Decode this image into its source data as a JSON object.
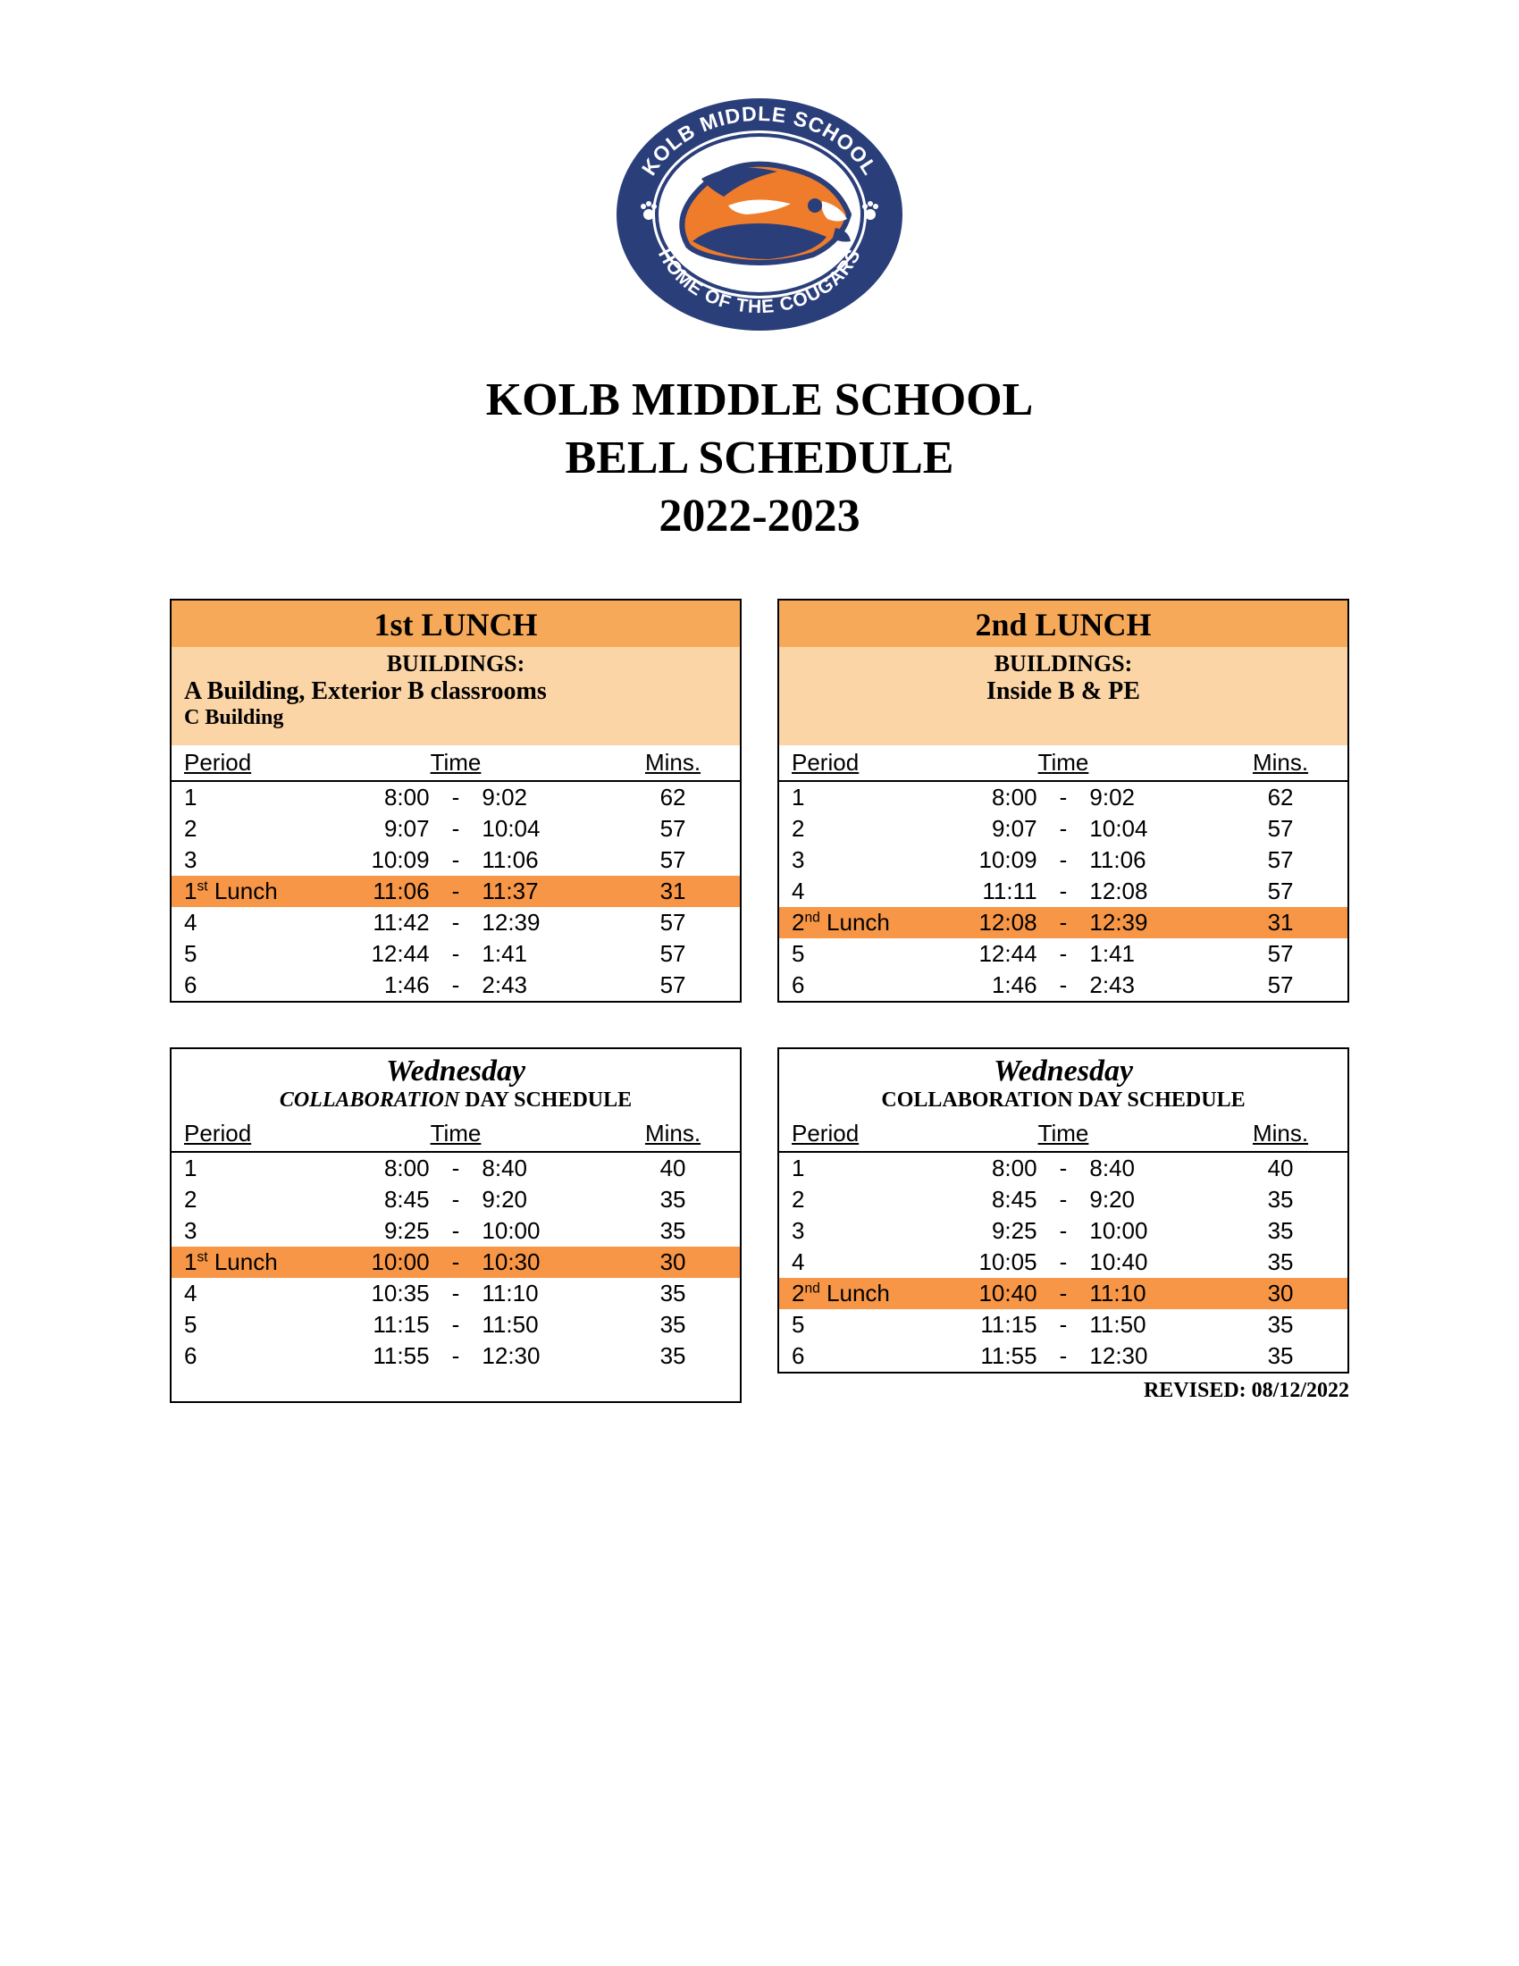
{
  "logo": {
    "top_text": "KOLB MIDDLE SCHOOL",
    "bottom_text": "HOME OF THE COUGARS",
    "ring_color": "#2a3e7a",
    "outline_color": "#2a3e7a",
    "inner_fill": "#ffffff",
    "cougar_orange": "#ee7c2a",
    "cougar_navy": "#2a3e7a"
  },
  "title": {
    "line1": "KOLB MIDDLE SCHOOL",
    "line2": "BELL SCHEDULE",
    "line3": "2022-2023"
  },
  "colors": {
    "header_orange": "#f7a95a",
    "subheader_peach": "#fcd5a6",
    "row_highlight": "#f79646",
    "border": "#000000",
    "text": "#000000",
    "background": "#ffffff"
  },
  "headers": {
    "period": "Period",
    "time": "Time",
    "mins": "Mins."
  },
  "lunch1": {
    "title": "1st LUNCH",
    "buildings_label": "BUILDINGS:",
    "buildings_line1": "A Building, Exterior B classrooms",
    "buildings_line2": "C Building",
    "rows": [
      {
        "period_html": "1",
        "start": "8:00",
        "end": "9:02",
        "mins": "62",
        "hl": false
      },
      {
        "period_html": "2",
        "start": "9:07",
        "end": "10:04",
        "mins": "57",
        "hl": false
      },
      {
        "period_html": "3",
        "start": "10:09",
        "end": "11:06",
        "mins": "57",
        "hl": false
      },
      {
        "period_html": "1<sup>st</sup> Lunch",
        "start": "11:06",
        "end": "11:37",
        "mins": "31",
        "hl": true
      },
      {
        "period_html": "4",
        "start": "11:42",
        "end": "12:39",
        "mins": "57",
        "hl": false
      },
      {
        "period_html": "5",
        "start": "12:44",
        "end": "1:41",
        "mins": "57",
        "hl": false
      },
      {
        "period_html": "6",
        "start": "1:46",
        "end": "2:43",
        "mins": "57",
        "hl": false
      }
    ]
  },
  "lunch2": {
    "title": "2nd LUNCH",
    "buildings_label": "BUILDINGS:",
    "buildings_line": "Inside B & PE",
    "rows": [
      {
        "period_html": "1",
        "start": "8:00",
        "end": "9:02",
        "mins": "62",
        "hl": false
      },
      {
        "period_html": "2",
        "start": "9:07",
        "end": "10:04",
        "mins": "57",
        "hl": false
      },
      {
        "period_html": "3",
        "start": "10:09",
        "end": "11:06",
        "mins": "57",
        "hl": false
      },
      {
        "period_html": "4",
        "start": "11:11",
        "end": "12:08",
        "mins": "57",
        "hl": false
      },
      {
        "period_html": "2<sup>nd</sup> Lunch",
        "start": "12:08",
        "end": "12:39",
        "mins": "31",
        "hl": true
      },
      {
        "period_html": "5",
        "start": "12:44",
        "end": "1:41",
        "mins": "57",
        "hl": false
      },
      {
        "period_html": "6",
        "start": "1:46",
        "end": "2:43",
        "mins": "57",
        "hl": false
      }
    ]
  },
  "wed1": {
    "title": "Wednesday",
    "subtitle_collab": "COLLABORATION",
    "subtitle_rest": " DAY SCHEDULE",
    "rows": [
      {
        "period_html": "1",
        "start": "8:00",
        "end": "8:40",
        "mins": "40",
        "hl": false
      },
      {
        "period_html": "2",
        "start": "8:45",
        "end": "9:20",
        "mins": "35",
        "hl": false
      },
      {
        "period_html": "3",
        "start": "9:25",
        "end": "10:00",
        "mins": "35",
        "hl": false
      },
      {
        "period_html": "1<sup>st</sup> Lunch",
        "start": "10:00",
        "end": "10:30",
        "mins": "30",
        "hl": true
      },
      {
        "period_html": "4",
        "start": "10:35",
        "end": "11:10",
        "mins": "35",
        "hl": false
      },
      {
        "period_html": "5",
        "start": "11:15",
        "end": "11:50",
        "mins": "35",
        "hl": false
      },
      {
        "period_html": "6",
        "start": "11:55",
        "end": "12:30",
        "mins": "35",
        "hl": false
      }
    ]
  },
  "wed2": {
    "title": "Wednesday",
    "subtitle_full": "COLLABORATION DAY SCHEDULE",
    "rows": [
      {
        "period_html": "1",
        "start": "8:00",
        "end": "8:40",
        "mins": "40",
        "hl": false
      },
      {
        "period_html": "2",
        "start": "8:45",
        "end": "9:20",
        "mins": "35",
        "hl": false
      },
      {
        "period_html": "3",
        "start": "9:25",
        "end": "10:00",
        "mins": "35",
        "hl": false
      },
      {
        "period_html": "4",
        "start": "10:05",
        "end": "10:40",
        "mins": "35",
        "hl": false
      },
      {
        "period_html": "2<sup>nd</sup> Lunch",
        "start": "10:40",
        "end": "11:10",
        "mins": "30",
        "hl": true
      },
      {
        "period_html": "5",
        "start": "11:15",
        "end": "11:50",
        "mins": "35",
        "hl": false
      },
      {
        "period_html": "6",
        "start": "11:55",
        "end": "12:30",
        "mins": "35",
        "hl": false
      }
    ]
  },
  "revised": "REVISED: 08/12/2022"
}
